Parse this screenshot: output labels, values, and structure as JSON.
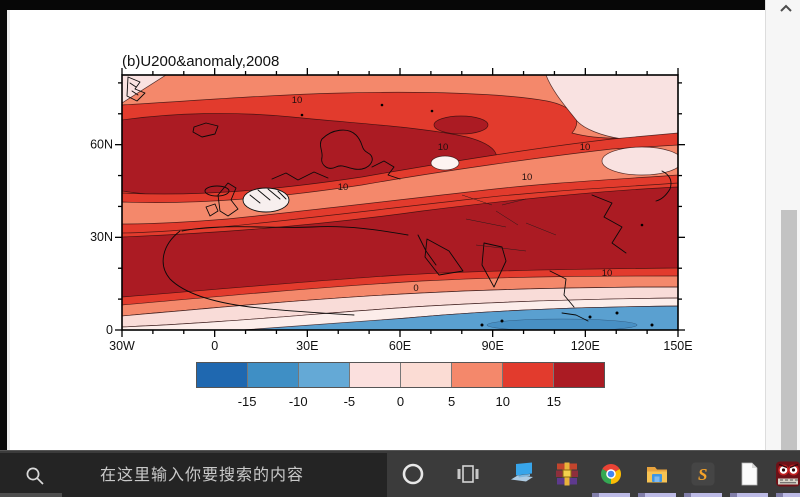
{
  "chart_data": {
    "type": "filled-contour-map",
    "title": "(b)U200&anomaly,2008",
    "x_ticks": [
      "30W",
      "0",
      "30E",
      "60E",
      "90E",
      "120E",
      "150E"
    ],
    "y_ticks": [
      "60N",
      "30N",
      "0"
    ],
    "x_range_deg": [
      -30,
      150
    ],
    "y_range_deg": [
      0,
      83
    ],
    "contour_interval": 5,
    "contour_labels": [
      "10",
      "10",
      "10",
      "10",
      "10",
      "10",
      "0"
    ],
    "colorbar": {
      "levels": [
        "-15",
        "-10",
        "-5",
        "0",
        "5",
        "10",
        "15"
      ],
      "colors": [
        "#1f68b0",
        "#3f8fc5",
        "#64a9d6",
        "#fbe0de",
        "#fbdcd4",
        "#f4886b",
        "#e23b2d",
        "#ab1b23"
      ]
    },
    "legend_position": "bottom",
    "grid": false,
    "region_colors": {
      "strong_positive": "#ab1b23",
      "positive": "#e23b2d",
      "weak_positive": "#f4886b",
      "near_zero": "#fbdcd4",
      "weak_negative": "#fbe0de",
      "negative": "#5aa0d0"
    }
  },
  "taskbar": {
    "search_placeholder": "在这里输入你要搜索的内容",
    "icons": [
      {
        "name": "cortana"
      },
      {
        "name": "task-view"
      },
      {
        "name": "pc-display"
      },
      {
        "name": "winrar"
      },
      {
        "name": "chrome"
      },
      {
        "name": "file-explorer"
      },
      {
        "name": "sublime-text"
      },
      {
        "name": "notepad"
      },
      {
        "name": "dictionary-mascot"
      }
    ]
  }
}
